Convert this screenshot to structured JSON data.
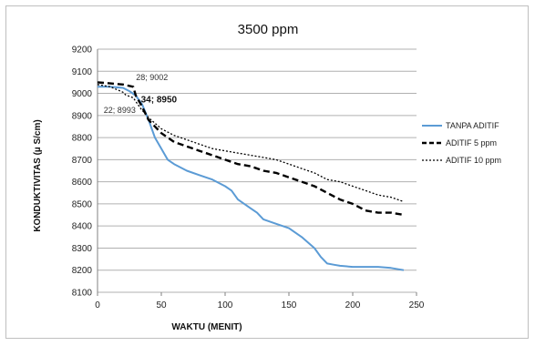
{
  "chart_data": {
    "type": "line",
    "title": "3500 ppm",
    "xlabel": "WAKTU (MENIT)",
    "ylabel": "KONDUKTIVITAS (µ S/cm)",
    "xlim": [
      0,
      250
    ],
    "ylim": [
      8100,
      9200
    ],
    "xticks": [
      0,
      50,
      100,
      150,
      200,
      250
    ],
    "yticks": [
      8100,
      8200,
      8300,
      8400,
      8500,
      8600,
      8700,
      8800,
      8900,
      9000,
      9100,
      9200
    ],
    "grid": "horizontal",
    "legend_position": "right",
    "series": [
      {
        "name": "TANPA ADITIF",
        "color": "#5b9bd5",
        "style": "solid",
        "x": [
          0,
          10,
          20,
          25,
          30,
          35,
          40,
          45,
          50,
          55,
          60,
          70,
          80,
          90,
          100,
          105,
          110,
          115,
          120,
          125,
          130,
          140,
          150,
          160,
          170,
          175,
          180,
          185,
          190,
          200,
          210,
          220,
          230,
          240
        ],
        "y": [
          9030,
          9030,
          9025,
          9010,
          8990,
          8950,
          8880,
          8800,
          8750,
          8700,
          8680,
          8650,
          8630,
          8610,
          8580,
          8560,
          8520,
          8500,
          8480,
          8460,
          8430,
          8410,
          8390,
          8350,
          8300,
          8260,
          8230,
          8225,
          8220,
          8215,
          8215,
          8215,
          8210,
          8200
        ]
      },
      {
        "name": "ADITIF 5 ppm",
        "color": "#000000",
        "style": "dash",
        "x": [
          0,
          10,
          20,
          28,
          30,
          34,
          40,
          50,
          60,
          70,
          80,
          90,
          100,
          110,
          120,
          130,
          140,
          150,
          160,
          170,
          180,
          190,
          200,
          210,
          220,
          230,
          240
        ],
        "y": [
          9050,
          9045,
          9040,
          9030,
          8990,
          8950,
          8880,
          8820,
          8780,
          8760,
          8740,
          8720,
          8700,
          8680,
          8670,
          8650,
          8640,
          8620,
          8600,
          8580,
          8550,
          8520,
          8500,
          8470,
          8460,
          8460,
          8450
        ]
      },
      {
        "name": "ADITIF 10 ppm",
        "color": "#000000",
        "style": "dot",
        "x": [
          0,
          10,
          20,
          22,
          28,
          34,
          40,
          50,
          60,
          70,
          80,
          90,
          100,
          110,
          120,
          130,
          140,
          150,
          160,
          170,
          180,
          190,
          200,
          210,
          220,
          230,
          240
        ],
        "y": [
          9040,
          9030,
          9005,
          8993,
          8980,
          8930,
          8890,
          8840,
          8810,
          8790,
          8770,
          8750,
          8740,
          8730,
          8720,
          8710,
          8700,
          8680,
          8660,
          8640,
          8610,
          8600,
          8580,
          8560,
          8540,
          8530,
          8510
        ]
      }
    ],
    "annotations": [
      {
        "text": "28; 9002",
        "x": 28,
        "y": 9002,
        "style": "normal"
      },
      {
        "text": "34; 8950",
        "x": 34,
        "y": 8950,
        "style": "bold"
      },
      {
        "text": "22; 8993",
        "x": 22,
        "y": 8993,
        "style": "small"
      }
    ]
  }
}
